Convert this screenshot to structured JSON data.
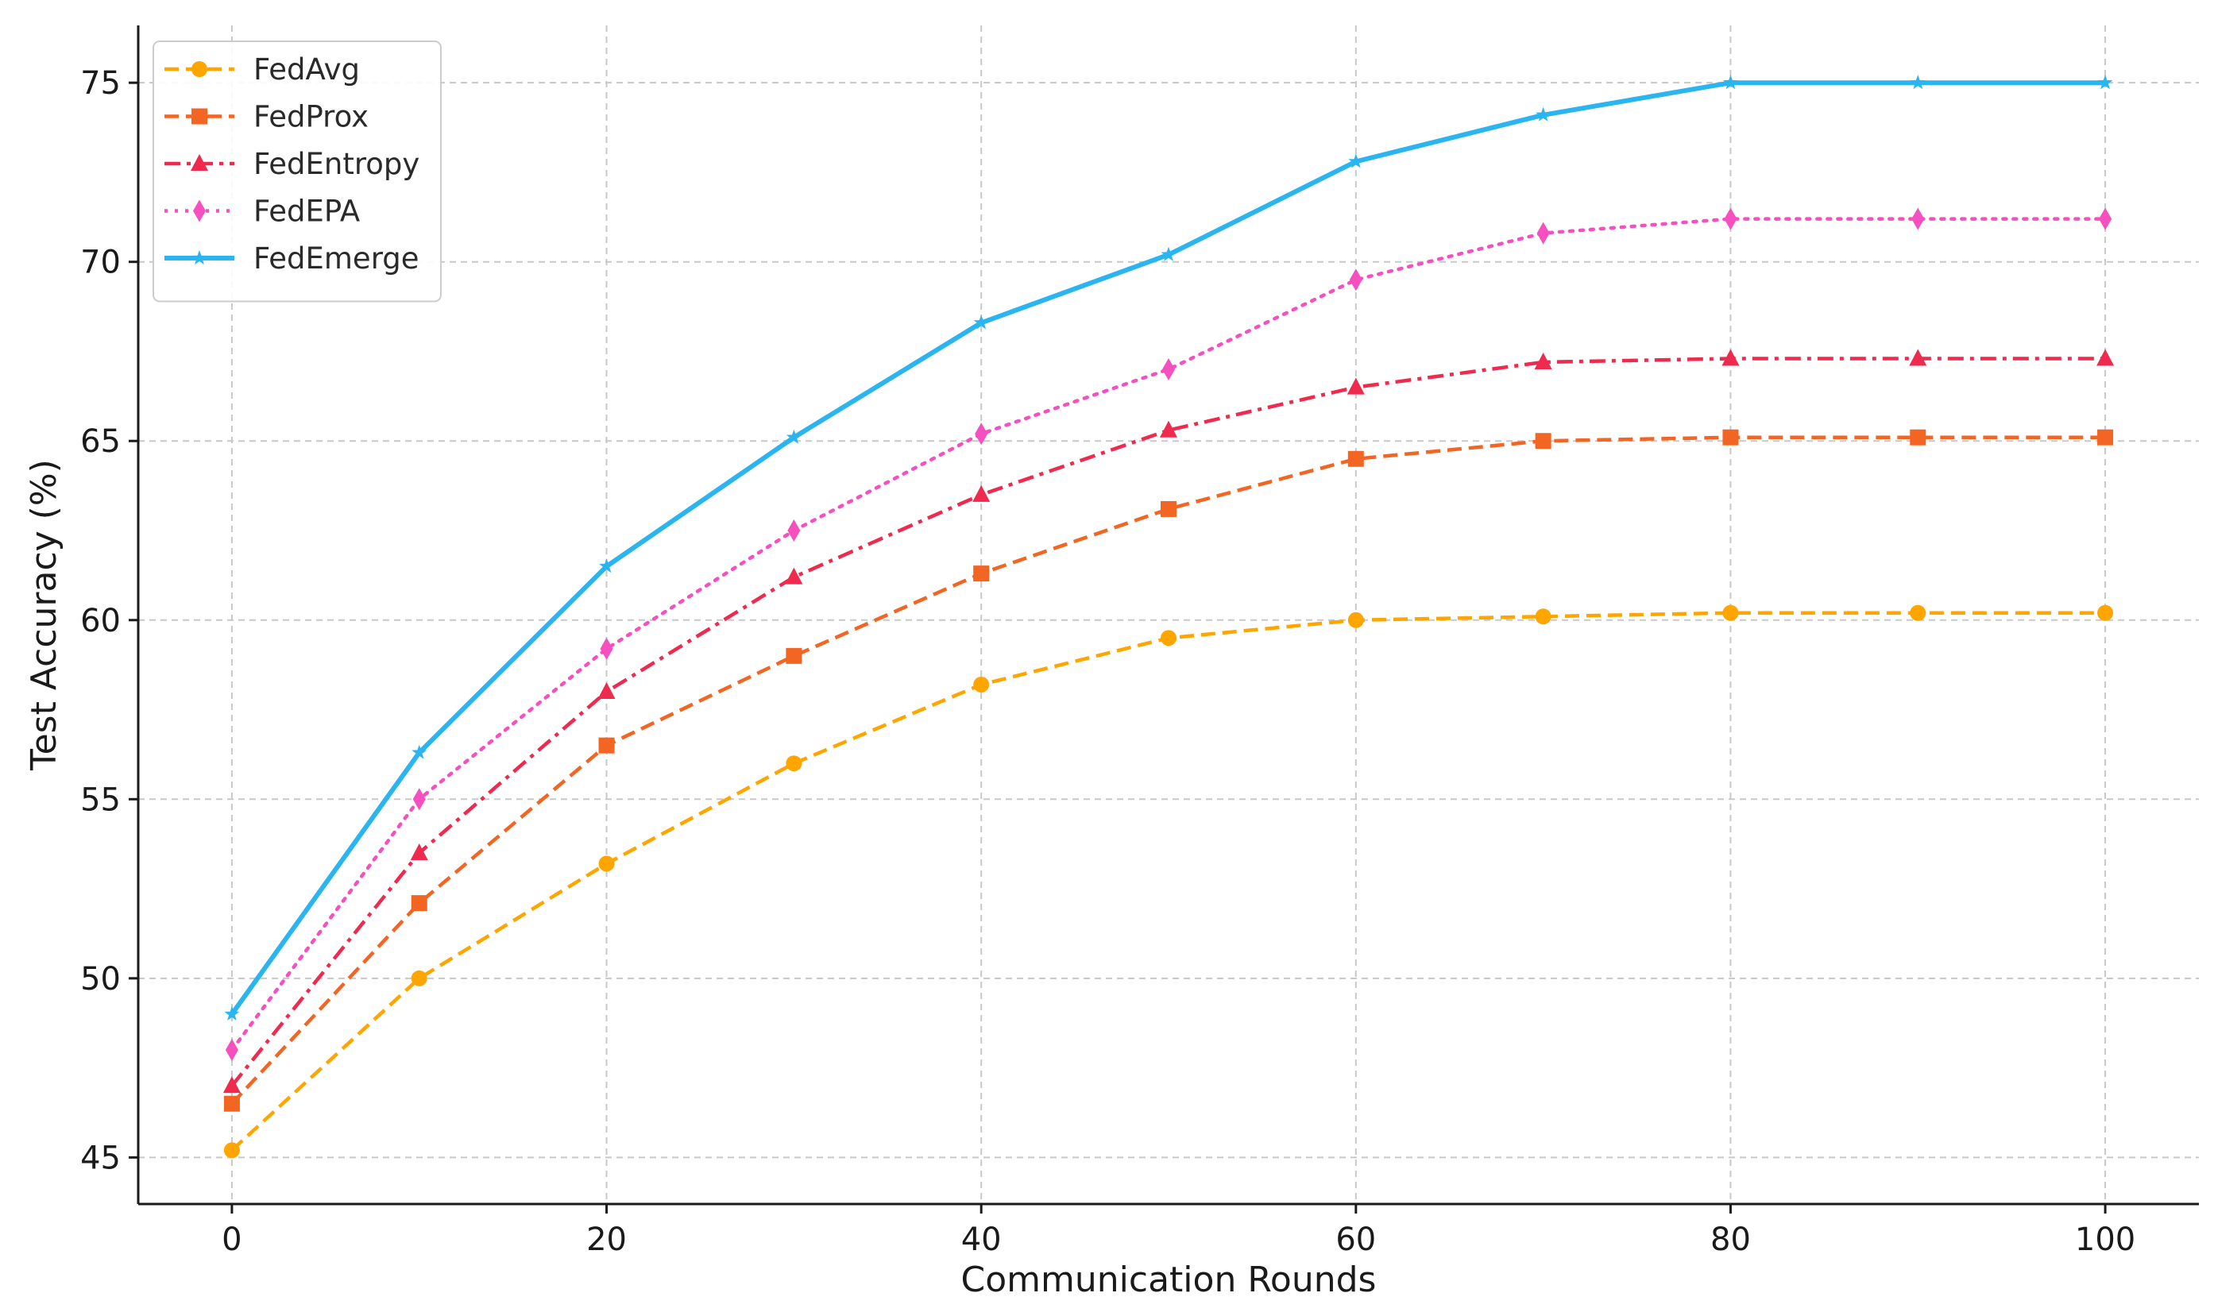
{
  "chart_data": {
    "type": "line",
    "title": "",
    "xlabel": "Communication Rounds",
    "ylabel": "Test Accuracy (%)",
    "xlim": [
      -5,
      105
    ],
    "ylim": [
      43.7,
      76.6
    ],
    "x_ticks": [
      0,
      20,
      40,
      60,
      80,
      100
    ],
    "y_ticks": [
      45,
      50,
      55,
      60,
      65,
      70,
      75
    ],
    "grid": true,
    "legend_position": "top-left",
    "x": [
      0,
      10,
      20,
      30,
      40,
      50,
      60,
      70,
      80,
      90,
      100
    ],
    "series": [
      {
        "name": "FedAvg",
        "color": "#FFA500",
        "linestyle": "dashed",
        "marker": "circle",
        "values": [
          45.2,
          50.0,
          53.2,
          56.0,
          58.2,
          59.5,
          60.0,
          60.1,
          60.2,
          60.2,
          60.2
        ]
      },
      {
        "name": "FedProx",
        "color": "#F26522",
        "linestyle": "dashed",
        "marker": "square",
        "values": [
          46.5,
          52.1,
          56.5,
          59.0,
          61.3,
          63.1,
          64.5,
          65.0,
          65.1,
          65.1,
          65.1
        ]
      },
      {
        "name": "FedEntropy",
        "color": "#EE2A4F",
        "linestyle": "dashdot",
        "marker": "triangle",
        "values": [
          47.0,
          53.5,
          58.0,
          61.2,
          63.5,
          65.3,
          66.5,
          67.2,
          67.3,
          67.3,
          67.3
        ]
      },
      {
        "name": "FedEPA",
        "color": "#F54FC0",
        "linestyle": "dotted",
        "marker": "diamond",
        "values": [
          48.0,
          55.0,
          59.2,
          62.5,
          65.2,
          67.0,
          69.5,
          70.8,
          71.2,
          71.2,
          71.2
        ]
      },
      {
        "name": "FedEmerge",
        "color": "#2BB5F0",
        "linestyle": "solid",
        "marker": "star",
        "values": [
          49.0,
          56.3,
          61.5,
          65.1,
          68.3,
          70.2,
          72.8,
          74.1,
          75.0,
          75.0,
          75.0
        ]
      }
    ]
  }
}
